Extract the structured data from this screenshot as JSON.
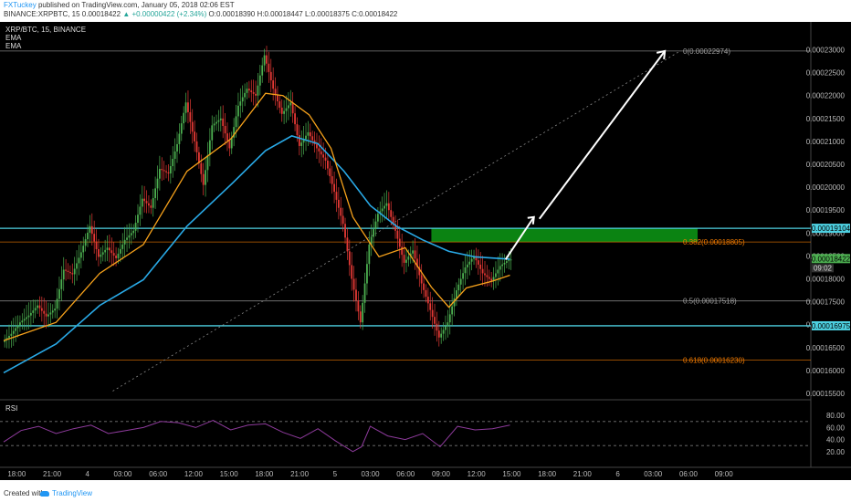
{
  "header": {
    "author": "FXTuckey",
    "published": "published on TradingView.com, January 05, 2018 02:06 EST",
    "symbol_line": "BINANCE:XRPBTC, 15  0.00018422",
    "change": "▲ +0.00000422 (+2.34%)",
    "ohlc": "O:0.00018390 H:0.00018447 L:0.00018375 C:0.00018422"
  },
  "legend": {
    "pair": "XRP/BTC, 15, BINANCE",
    "ema1": "EMA",
    "ema2": "EMA",
    "rsi": "RSI"
  },
  "footer": {
    "created": "Created with",
    "brand": "TradingView"
  },
  "colors": {
    "up": "#4caf50",
    "down": "#e53935",
    "ema_fast": "#f7a21b",
    "ema_slow": "#29a9e6",
    "rsi": "#8e3b9c",
    "fib_orange": "#f57c00",
    "cyan": "#4dd0e1",
    "zone": "#0c8a13"
  },
  "chart_data": {
    "type": "candlestick",
    "price_ticks": [
      "0.00023000",
      "0.00022500",
      "0.00022000",
      "0.00021500",
      "0.00021000",
      "0.00020500",
      "0.00020000",
      "0.00019500",
      "0.00019000",
      "0.00018500",
      "0.00018000",
      "0.00017500",
      "0.00017000",
      "0.00016500",
      "0.00016000",
      "0.00015500"
    ],
    "ylim": [
      0.000154,
      0.0002325
    ],
    "time_ticks": [
      "18:00",
      "21:00",
      "4",
      "03:00",
      "06:00",
      "12:00",
      "15:00",
      "18:00",
      "21:00",
      "5",
      "03:00",
      "06:00",
      "09:00",
      "12:00",
      "15:00",
      "18:00",
      "21:00",
      "6",
      "03:00",
      "06:00",
      "09:00"
    ],
    "price_path": [
      [
        0,
        0.0001662
      ],
      [
        4,
        0.000168
      ],
      [
        8,
        0.0001705
      ],
      [
        12,
        0.000172
      ],
      [
        16,
        0.0001742
      ],
      [
        20,
        0.0001718
      ],
      [
        24,
        0.0001735
      ],
      [
        28,
        0.000182
      ],
      [
        32,
        0.000181
      ],
      [
        36,
        0.0001858
      ],
      [
        40,
        0.0001915
      ],
      [
        44,
        0.0001848
      ],
      [
        48,
        0.0001868
      ],
      [
        52,
        0.0001845
      ],
      [
        56,
        0.0001885
      ],
      [
        60,
        0.0001905
      ],
      [
        64,
        0.0001975
      ],
      [
        68,
        0.0001955
      ],
      [
        72,
        0.000204
      ],
      [
        76,
        0.000203
      ],
      [
        80,
        0.0002094
      ],
      [
        84,
        0.0002185
      ],
      [
        88,
        0.00021
      ],
      [
        92,
        0.0002005
      ],
      [
        96,
        0.0002135
      ],
      [
        100,
        0.000215
      ],
      [
        104,
        0.0002085
      ],
      [
        108,
        0.0002178
      ],
      [
        112,
        0.0002215
      ],
      [
        116,
        0.00022
      ],
      [
        120,
        0.0002288
      ],
      [
        124,
        0.0002215
      ],
      [
        128,
        0.000216
      ],
      [
        132,
        0.0002185
      ],
      [
        136,
        0.000209
      ],
      [
        140,
        0.000212
      ],
      [
        144,
        0.0002085
      ],
      [
        148,
        0.0002058
      ],
      [
        152,
        0.000199
      ],
      [
        156,
        0.000192
      ],
      [
        160,
        0.00018
      ],
      [
        164,
        0.0001705
      ],
      [
        168,
        0.0001875
      ],
      [
        172,
        0.0001942
      ],
      [
        176,
        0.0001965
      ],
      [
        180,
        0.0001905
      ],
      [
        184,
        0.0001835
      ],
      [
        188,
        0.0001862
      ],
      [
        192,
        0.000179
      ],
      [
        196,
        0.0001732
      ],
      [
        200,
        0.0001672
      ],
      [
        204,
        0.0001705
      ],
      [
        208,
        0.0001775
      ],
      [
        212,
        0.0001825
      ],
      [
        216,
        0.000185
      ],
      [
        220,
        0.0001812
      ],
      [
        224,
        0.0001796
      ],
      [
        228,
        0.0001828
      ],
      [
        232,
        0.0001842
      ]
    ],
    "ema_fast": [
      [
        0,
        0.0001665
      ],
      [
        24,
        0.0001705
      ],
      [
        44,
        0.0001812
      ],
      [
        64,
        0.0001875
      ],
      [
        84,
        0.0002035
      ],
      [
        104,
        0.0002105
      ],
      [
        120,
        0.0002205
      ],
      [
        128,
        0.00022
      ],
      [
        140,
        0.0002158
      ],
      [
        150,
        0.0002085
      ],
      [
        160,
        0.0001935
      ],
      [
        172,
        0.0001848
      ],
      [
        184,
        0.0001868
      ],
      [
        196,
        0.0001782
      ],
      [
        204,
        0.0001738
      ],
      [
        212,
        0.000178
      ],
      [
        224,
        0.0001795
      ],
      [
        232,
        0.0001808
      ]
    ],
    "ema_slow": [
      [
        0,
        0.0001595
      ],
      [
        24,
        0.0001658
      ],
      [
        44,
        0.0001742
      ],
      [
        64,
        0.0001798
      ],
      [
        84,
        0.0001915
      ],
      [
        104,
        0.0002005
      ],
      [
        120,
        0.000208
      ],
      [
        132,
        0.0002112
      ],
      [
        144,
        0.0002095
      ],
      [
        156,
        0.0002035
      ],
      [
        168,
        0.000196
      ],
      [
        180,
        0.0001915
      ],
      [
        192,
        0.0001885
      ],
      [
        204,
        0.000186
      ],
      [
        216,
        0.0001848
      ],
      [
        232,
        0.0001843
      ]
    ],
    "rsi": {
      "ticks": [
        "80.00",
        "60.00",
        "40.00",
        "20.00"
      ],
      "upper": 70,
      "lower": 30
    },
    "rsi_path": [
      [
        0,
        36
      ],
      [
        8,
        55
      ],
      [
        16,
        62
      ],
      [
        24,
        50
      ],
      [
        32,
        58
      ],
      [
        40,
        64
      ],
      [
        48,
        50
      ],
      [
        56,
        55
      ],
      [
        64,
        60
      ],
      [
        72,
        70
      ],
      [
        80,
        68
      ],
      [
        88,
        60
      ],
      [
        96,
        72
      ],
      [
        104,
        56
      ],
      [
        112,
        64
      ],
      [
        120,
        66
      ],
      [
        128,
        52
      ],
      [
        136,
        42
      ],
      [
        144,
        58
      ],
      [
        152,
        38
      ],
      [
        160,
        20
      ],
      [
        164,
        28
      ],
      [
        168,
        62
      ],
      [
        176,
        46
      ],
      [
        184,
        40
      ],
      [
        192,
        50
      ],
      [
        200,
        28
      ],
      [
        208,
        62
      ],
      [
        216,
        56
      ],
      [
        224,
        58
      ],
      [
        232,
        64
      ]
    ],
    "levels": [
      {
        "name": "fib-0",
        "price": 0.00022974,
        "label": "0(0.00022974)",
        "color": "#9e9e9e"
      },
      {
        "name": "fib-382",
        "price": 0.00018805,
        "label": "0.382(0.00018805)",
        "color": "#f57c00"
      },
      {
        "name": "fib-500",
        "price": 0.00017518,
        "label": "0.5(0.00017518)",
        "color": "#9e9e9e"
      },
      {
        "name": "fib-618",
        "price": 0.0001623,
        "label": "0.618(0.00016230)",
        "color": "#f57c00"
      }
    ],
    "support_lines": [
      {
        "name": "resistance-line",
        "price": 0.00019104,
        "label": "0.00019104"
      },
      {
        "name": "support-line",
        "price": 0.00016975,
        "label": "0.00016975"
      }
    ],
    "zone": {
      "x1": 196,
      "x2": 318,
      "top": 0.00019104,
      "bottom": 0.00018805
    },
    "current": {
      "label": "0.00018422",
      "sub": "09:02",
      "price": 0.00018422
    },
    "arrow": {
      "from": [
        230,
        0.00018422
      ],
      "via": [
        243,
        0.0001935
      ],
      "to": [
        303,
        0.00022974
      ]
    },
    "trendline": {
      "from": [
        50,
        0.0001555
      ],
      "to": [
        310,
        0.00022974
      ]
    }
  }
}
